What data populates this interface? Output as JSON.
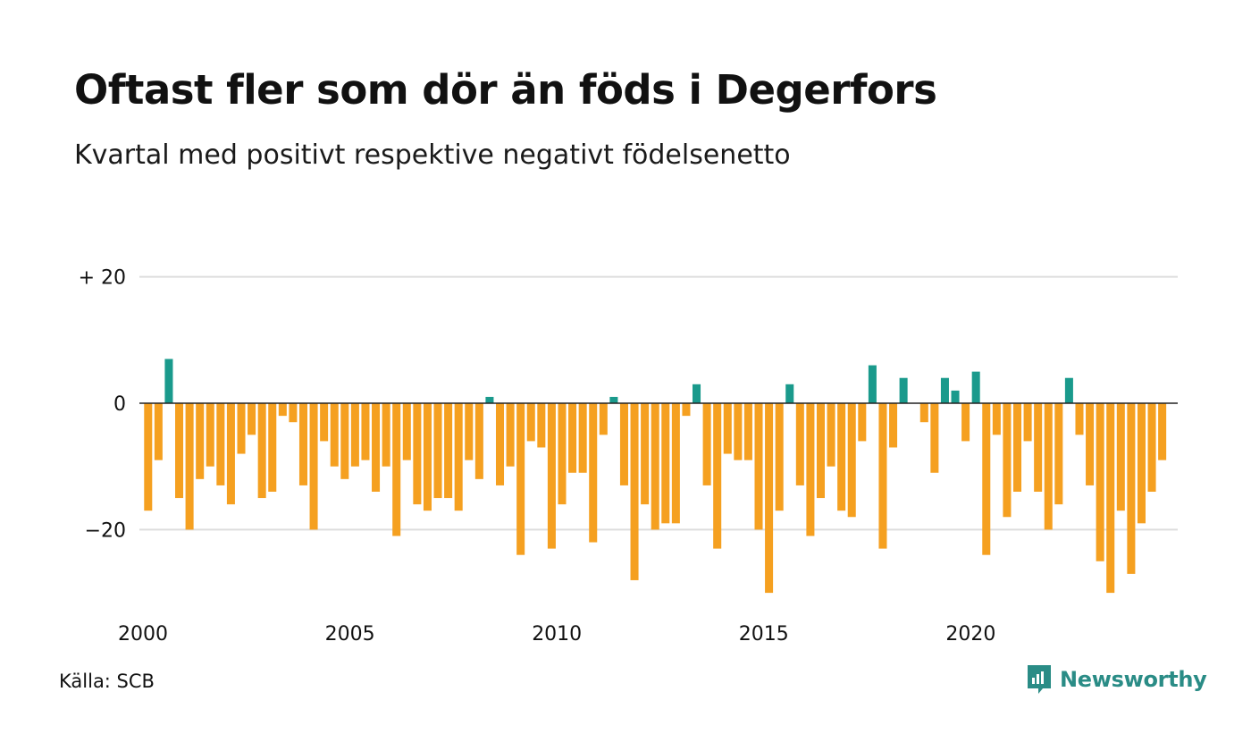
{
  "header": {
    "title": "Oftast fler som dör än föds i Degerfors",
    "subtitle": "Kvartal med positivt respektive negativt födelsenetto"
  },
  "footer": {
    "source": "Källa: SCB",
    "brand": "Newsworthy"
  },
  "colors": {
    "positive": "#1a9a8c",
    "negative": "#f5a020",
    "grid": "#dddddd",
    "brand": "#2a8c86"
  },
  "icons": {
    "brand": "newsworthy-logo-icon"
  },
  "chart_data": {
    "type": "bar",
    "title": "Oftast fler som dör än föds i Degerfors",
    "subtitle": "Kvartal med positivt respektive negativt födelsenetto",
    "xlabel": "",
    "ylabel": "",
    "ylim": [
      -30,
      20
    ],
    "grid": true,
    "y_ticks": [
      {
        "value": 20,
        "label": "+ 20"
      },
      {
        "value": 0,
        "label": "0"
      },
      {
        "value": -20,
        "label": "−20"
      }
    ],
    "x_ticks": [
      {
        "value": "2000",
        "label": "2000"
      },
      {
        "value": "2005",
        "label": "2005"
      },
      {
        "value": "2010",
        "label": "2010"
      },
      {
        "value": "2015",
        "label": "2015"
      },
      {
        "value": "2020",
        "label": "2020"
      }
    ],
    "categories": [
      "2000 K1",
      "2000 K2",
      "2000 K3",
      "2000 K4",
      "2001 K1",
      "2001 K2",
      "2001 K3",
      "2001 K4",
      "2002 K1",
      "2002 K2",
      "2002 K3",
      "2002 K4",
      "2003 K1",
      "2003 K2",
      "2003 K3",
      "2003 K4",
      "2004 K1",
      "2004 K2",
      "2004 K3",
      "2004 K4",
      "2005 K1",
      "2005 K2",
      "2005 K3",
      "2005 K4",
      "2006 K1",
      "2006 K2",
      "2006 K3",
      "2006 K4",
      "2007 K1",
      "2007 K2",
      "2007 K3",
      "2007 K4",
      "2008 K1",
      "2008 K2",
      "2008 K3",
      "2008 K4",
      "2009 K1",
      "2009 K2",
      "2009 K3",
      "2009 K4",
      "2010 K1",
      "2010 K2",
      "2010 K3",
      "2010 K4",
      "2011 K1",
      "2011 K2",
      "2011 K3",
      "2011 K4",
      "2012 K1",
      "2012 K2",
      "2012 K3",
      "2012 K4",
      "2013 K1",
      "2013 K2",
      "2013 K3",
      "2013 K4",
      "2014 K1",
      "2014 K2",
      "2014 K3",
      "2014 K4",
      "2015 K1",
      "2015 K2",
      "2015 K3",
      "2015 K4",
      "2016 K1",
      "2016 K2",
      "2016 K3",
      "2016 K4",
      "2017 K1",
      "2017 K2",
      "2017 K3",
      "2017 K4",
      "2018 K1",
      "2018 K2",
      "2018 K3",
      "2018 K4",
      "2019 K1",
      "2019 K2",
      "2019 K3",
      "2019 K4",
      "2020 K1",
      "2020 K2",
      "2020 K3",
      "2020 K4",
      "2021 K1",
      "2021 K2",
      "2021 K3",
      "2021 K4",
      "2022 K1",
      "2022 K2",
      "2022 K3",
      "2022 K4",
      "2023 K1",
      "2023 K2",
      "2023 K3",
      "2023 K4",
      "2024 K1",
      "2024 K2",
      "2024 K3",
      "2024 K4"
    ],
    "values": [
      -17,
      -9,
      7,
      -15,
      -20,
      -12,
      -10,
      -13,
      -16,
      -8,
      -5,
      -15,
      -14,
      -2,
      -3,
      -13,
      -20,
      -6,
      -10,
      -12,
      -10,
      -9,
      -14,
      -10,
      -21,
      -9,
      -16,
      -17,
      -15,
      -15,
      -17,
      -9,
      -12,
      1,
      -13,
      -10,
      -24,
      -6,
      -7,
      -23,
      -16,
      -11,
      -11,
      -22,
      -5,
      1,
      -13,
      -28,
      -16,
      -20,
      -19,
      -19,
      -2,
      3,
      -13,
      -23,
      -8,
      -9,
      -9,
      -20,
      -30,
      -17,
      3,
      -13,
      -21,
      -15,
      -10,
      -17,
      -18,
      -6,
      6,
      -23,
      -7,
      4,
      0,
      -3,
      -11,
      4,
      2,
      -6,
      5,
      -24,
      -5,
      -18,
      -14,
      -6,
      -14,
      -20,
      -16,
      4,
      -5,
      -13,
      -25,
      -30,
      -17,
      -27,
      -19,
      -14,
      -9,
      0
    ]
  }
}
